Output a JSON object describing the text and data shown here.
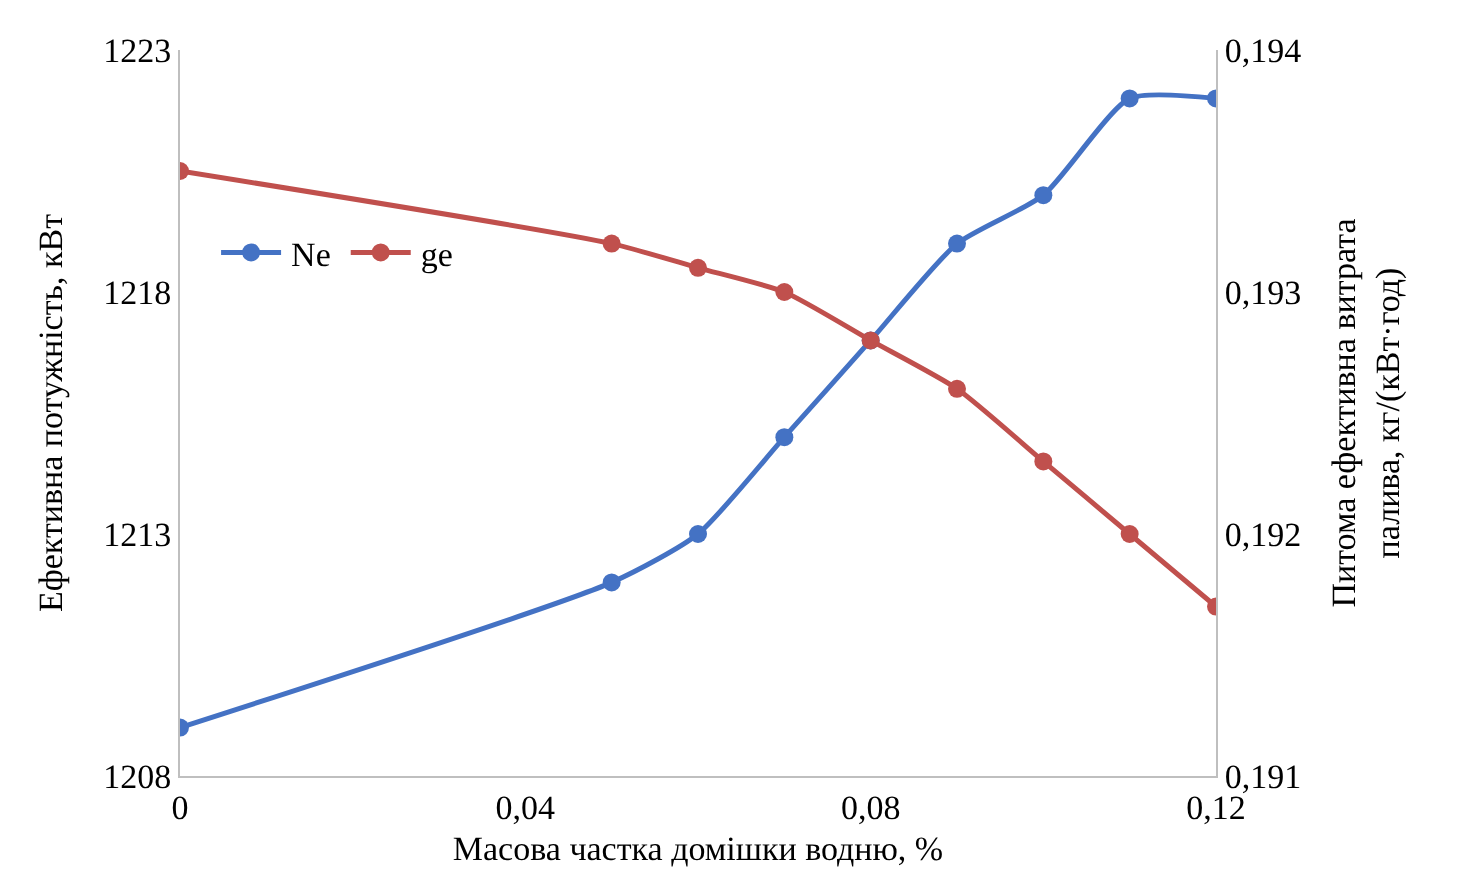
{
  "chart_data": {
    "type": "line",
    "xlabel": "Масова частка домішки водню, %",
    "ylabel": "Ефективна потужність, кВт",
    "y2label": "Питома ефективна витрата\nпалива, кг/(кВт·год)",
    "x": [
      0,
      0.05,
      0.06,
      0.07,
      0.08,
      0.09,
      0.1,
      0.11,
      0.12
    ],
    "series": [
      {
        "name": "Ne",
        "color": "#4472c4",
        "values": [
          1209,
          1212,
          1213,
          1215,
          1217,
          1219,
          1220,
          1222,
          1222
        ]
      },
      {
        "name": "ge",
        "color": "#c0504d",
        "axis": "y2",
        "values": [
          0.1935,
          0.1932,
          0.1931,
          0.193,
          0.1928,
          0.1926,
          0.1923,
          0.192,
          0.1917
        ]
      }
    ],
    "xlim": [
      0,
      0.12
    ],
    "xticks": [
      0,
      {
        "value": 0.04,
        "label": "0,04"
      },
      {
        "value": 0.08,
        "label": "0,08"
      },
      {
        "value": 0.12,
        "label": "0,12"
      }
    ],
    "ylim": [
      1208,
      1223
    ],
    "yticks": [
      1208,
      1213,
      1218,
      1223
    ],
    "y2lim": [
      0.191,
      0.194
    ],
    "y2ticks": [
      {
        "value": 0.191,
        "label": "0,191"
      },
      {
        "value": 0.192,
        "label": "0,192"
      },
      {
        "value": 0.193,
        "label": "0,193"
      },
      {
        "value": 0.194,
        "label": "0,194"
      }
    ],
    "legend": "left",
    "marker": "circle",
    "line_style": "solid"
  }
}
